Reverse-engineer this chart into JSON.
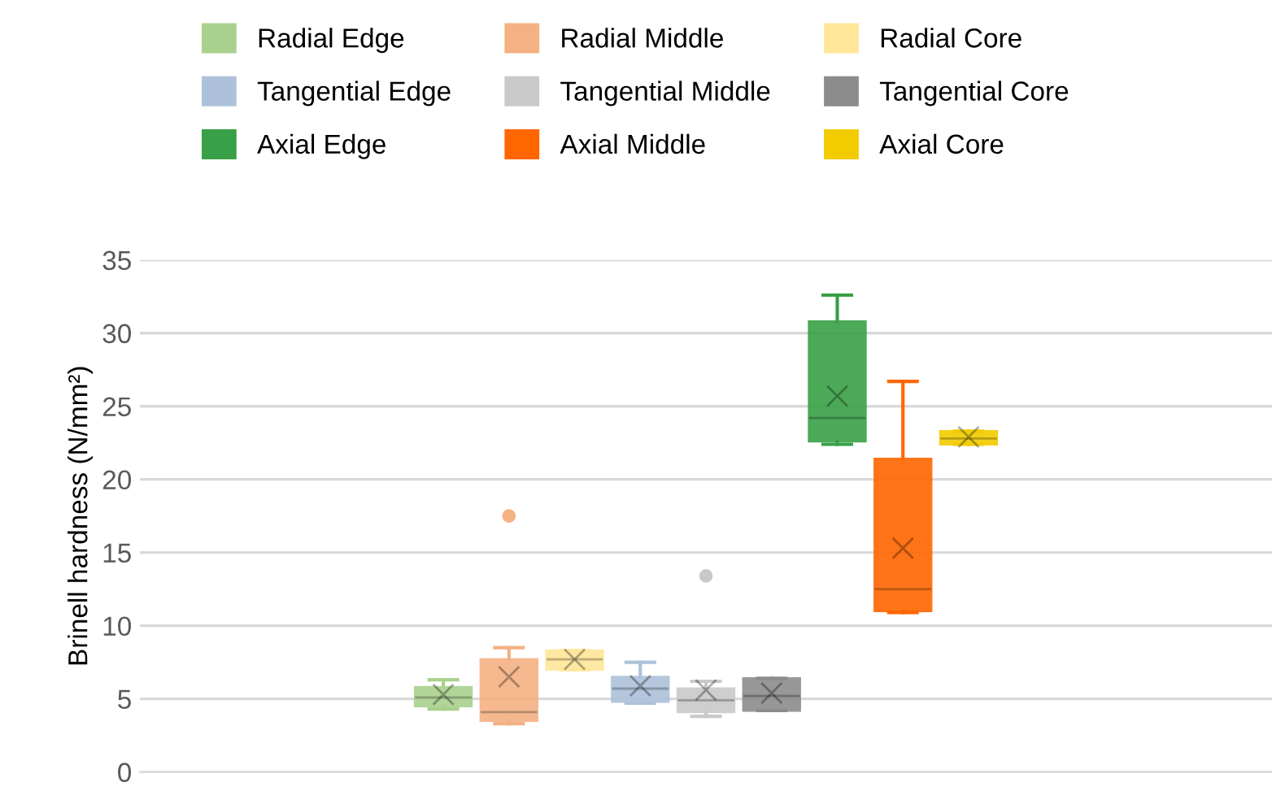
{
  "chart_data": {
    "type": "box",
    "ylabel": "Brinell hardness (N/mm²)",
    "categories": [
      null
    ],
    "ylim": [
      0,
      35
    ],
    "yticks": [
      0,
      5,
      10,
      15,
      20,
      25,
      30,
      35
    ],
    "grid": "y",
    "legend": "top",
    "series": [
      {
        "name": "Radial Edge",
        "color": "#a9d18e",
        "boxes": [
          {
            "low": 4.3,
            "q1": 4.5,
            "median": 5.1,
            "q3": 5.8,
            "high": 6.3,
            "mean": 5.3
          }
        ]
      },
      {
        "name": "Radial Middle",
        "color": "#f4b183",
        "boxes": [
          {
            "low": 3.3,
            "q1": 3.5,
            "median": 4.1,
            "q3": 7.7,
            "high": 8.5,
            "mean": 6.5,
            "outliers": [
              17.5
            ]
          }
        ]
      },
      {
        "name": "Radial Core",
        "color": "#ffe699",
        "boxes": [
          {
            "low": 7.0,
            "q1": 7.0,
            "median": 7.7,
            "q3": 8.3,
            "high": 8.3,
            "mean": 7.7
          }
        ]
      },
      {
        "name": "Tangential Edge",
        "color": "#adc2da",
        "boxes": [
          {
            "low": 4.7,
            "q1": 4.8,
            "median": 5.7,
            "q3": 6.5,
            "high": 7.5,
            "mean": 5.9
          }
        ]
      },
      {
        "name": "Tangential Middle",
        "color": "#c9c9c9",
        "boxes": [
          {
            "low": 3.8,
            "q1": 4.1,
            "median": 4.9,
            "q3": 5.7,
            "high": 6.2,
            "mean": 5.6,
            "outliers": [
              13.4
            ]
          }
        ]
      },
      {
        "name": "Tangential Core",
        "color": "#8c8c8c",
        "boxes": [
          {
            "low": 4.2,
            "q1": 4.2,
            "median": 5.2,
            "q3": 6.4,
            "high": 6.4,
            "mean": 5.4
          }
        ]
      },
      {
        "name": "Axial Edge",
        "color": "#38a046",
        "boxes": [
          {
            "low": 22.4,
            "q1": 22.6,
            "median": 24.2,
            "q3": 30.8,
            "high": 32.6,
            "mean": 25.7
          }
        ]
      },
      {
        "name": "Axial Middle",
        "color": "#ff6600",
        "boxes": [
          {
            "low": 10.9,
            "q1": 11.0,
            "median": 12.5,
            "q3": 21.4,
            "high": 26.7,
            "mean": 15.3
          }
        ]
      },
      {
        "name": "Axial Core",
        "color": "#f2cc00",
        "boxes": [
          {
            "low": 22.4,
            "q1": 22.4,
            "median": 22.8,
            "q3": 23.3,
            "high": 23.3,
            "mean": 22.9
          }
        ]
      }
    ]
  }
}
